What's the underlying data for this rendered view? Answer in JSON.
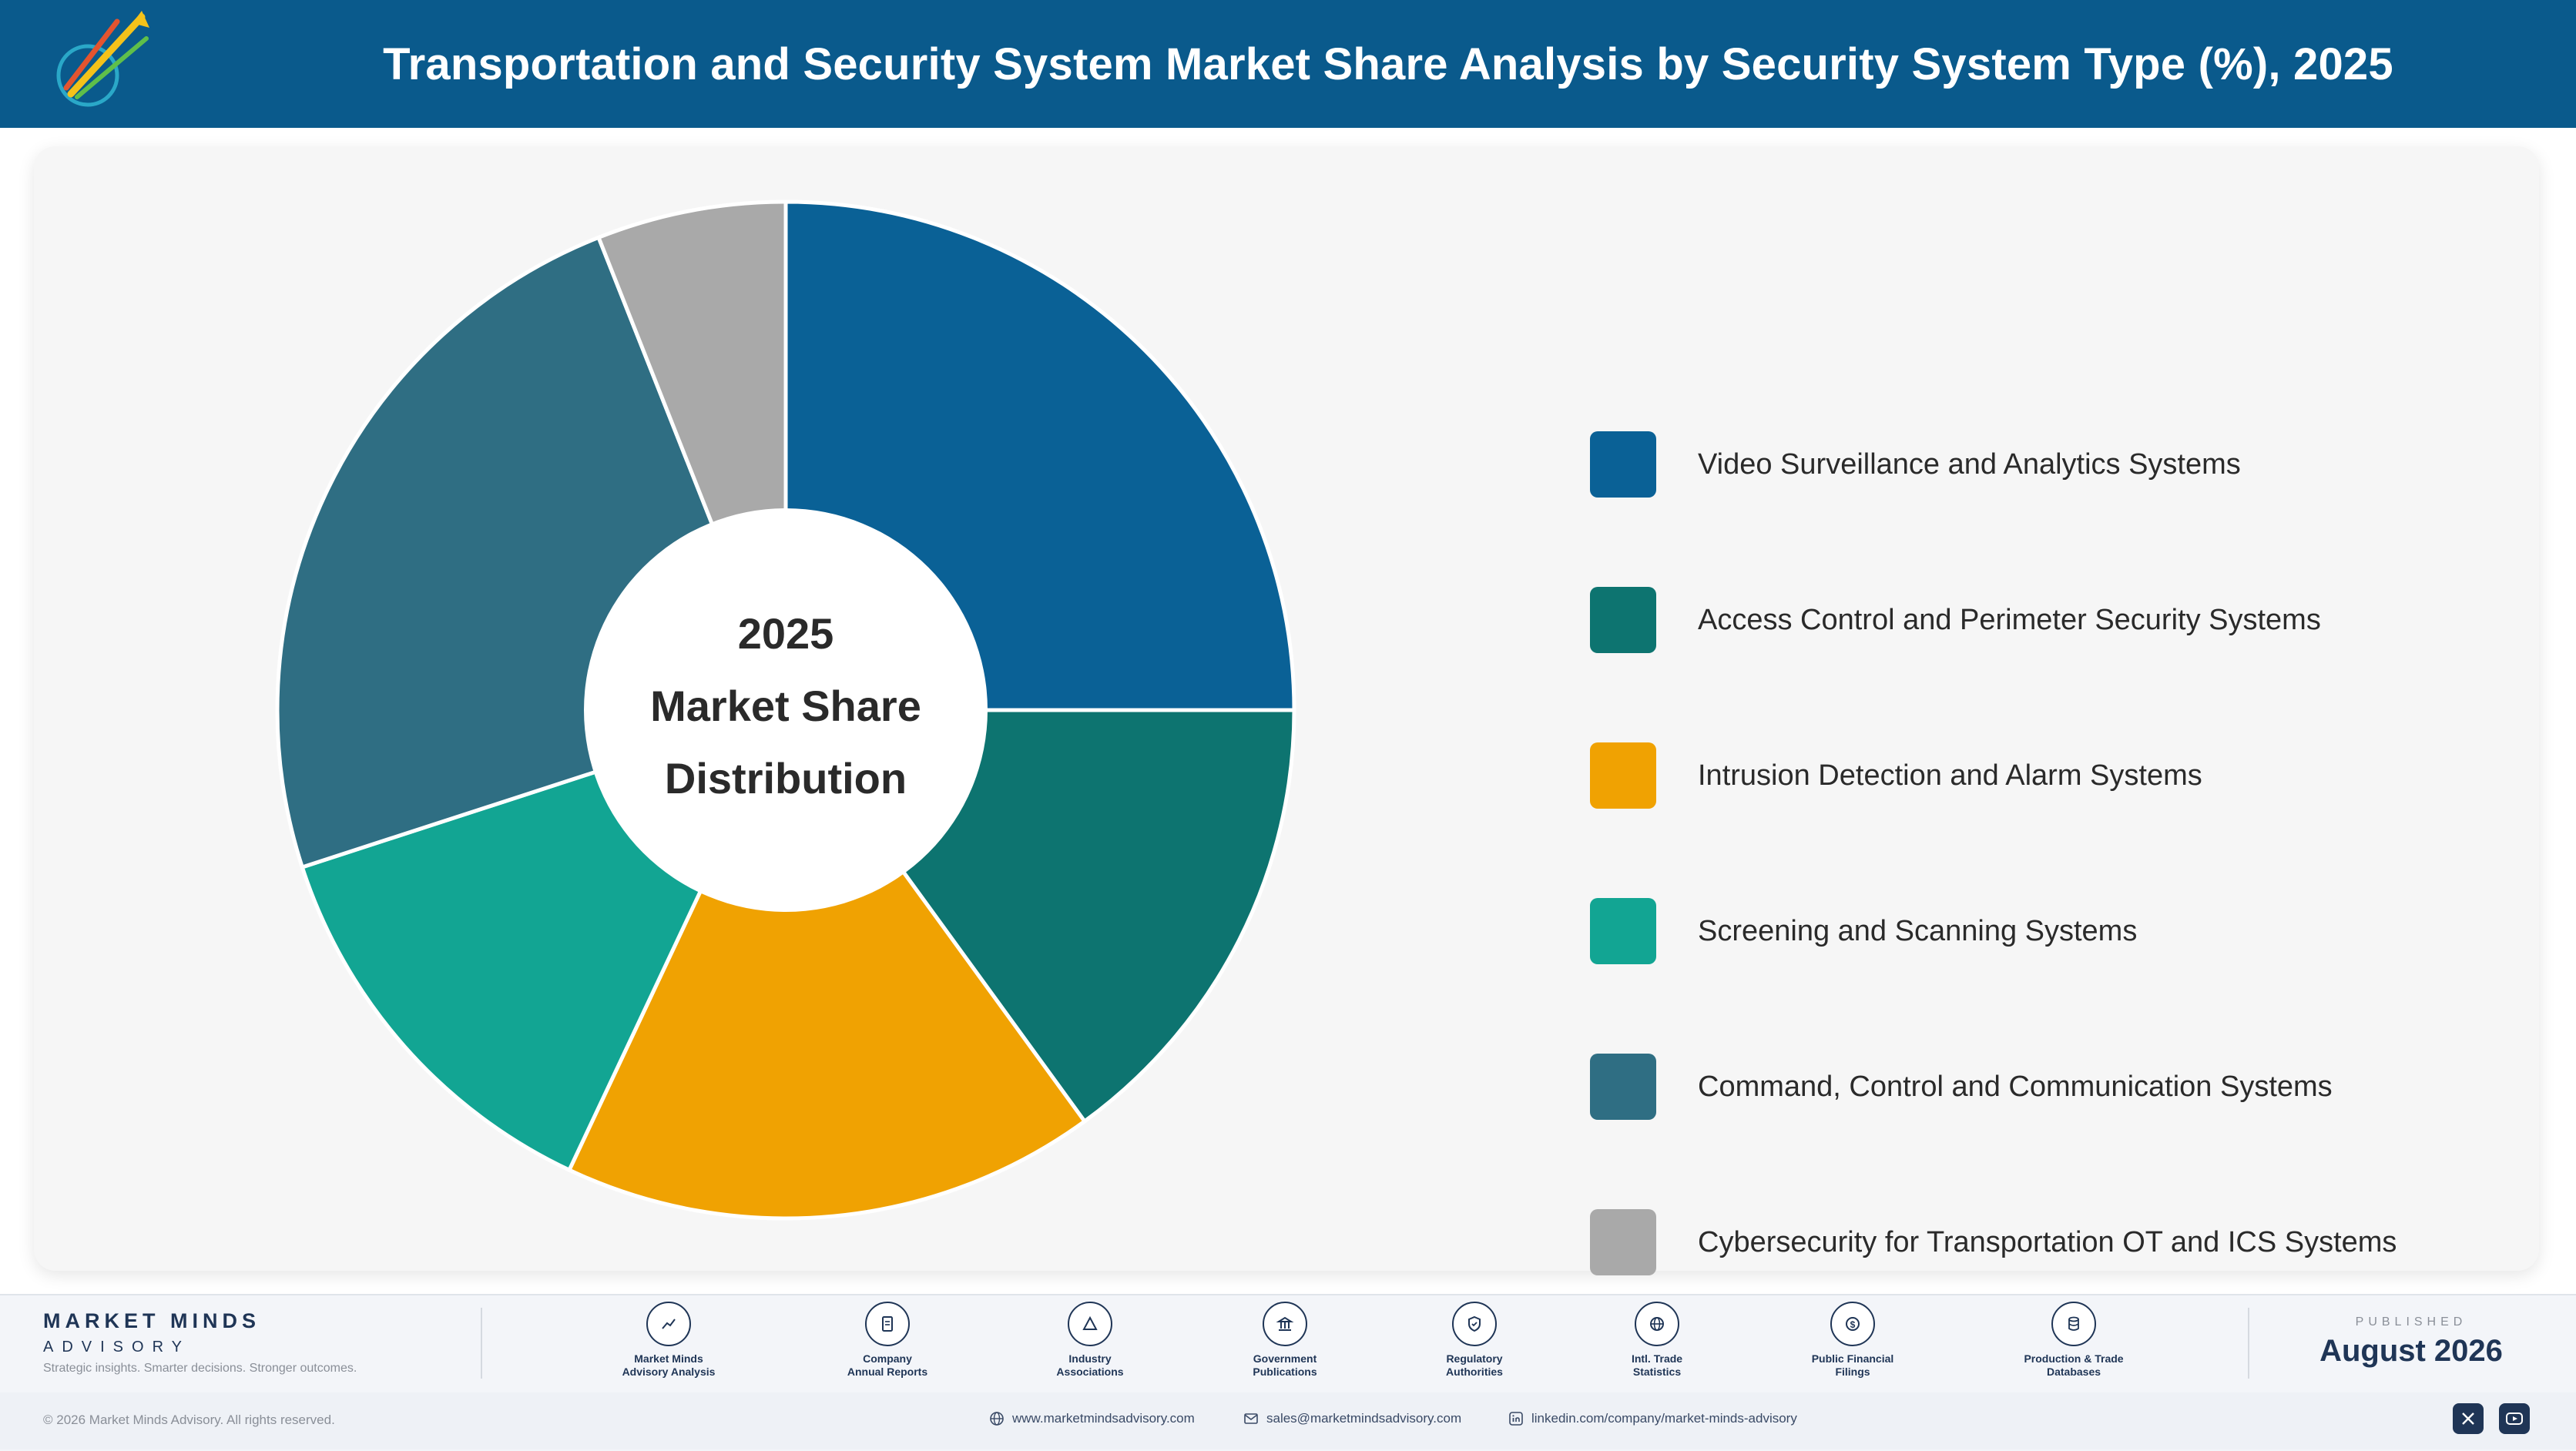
{
  "header": {
    "title": "Transportation and Security System Market Share Analysis by Security System Type (%), 2025",
    "logo_icon": "market-minds-logo"
  },
  "chart_data": {
    "type": "pie",
    "title": "Transportation and Security System Market Share Analysis by Security System Type (%), 2025",
    "center_label": [
      "2025",
      "Market Share",
      "Distribution"
    ],
    "categories": [
      "Video Surveillance and Analytics Systems",
      "Access Control and Perimeter Security Systems",
      "Intrusion Detection and Alarm Systems",
      "Screening and Scanning Systems",
      "Command, Control and Communication Systems",
      "Cybersecurity for Transportation OT and ICS Systems"
    ],
    "values": [
      25,
      15,
      17,
      13,
      24,
      6
    ],
    "colors": [
      "#0a6196",
      "#0d7470",
      "#f0a202",
      "#12a593",
      "#2f6e83",
      "#a9a9a9"
    ],
    "legend_position": "right",
    "donut": true
  },
  "footer": {
    "brand_name": "MARKET MINDS",
    "brand_sub": "ADVISORY",
    "tagline": "Strategic insights. Smarter decisions. Stronger outcomes.",
    "sources": [
      {
        "line1": "Market Minds",
        "line2": "Advisory Analysis",
        "icon": "trend-icon"
      },
      {
        "line1": "Company",
        "line2": "Annual Reports",
        "icon": "document-icon"
      },
      {
        "line1": "Industry",
        "line2": "Associations",
        "icon": "network-icon"
      },
      {
        "line1": "Government",
        "line2": "Publications",
        "icon": "government-icon"
      },
      {
        "line1": "Regulatory",
        "line2": "Authorities",
        "icon": "shield-icon"
      },
      {
        "line1": "Intl. Trade",
        "line2": "Statistics",
        "icon": "globe-icon"
      },
      {
        "line1": "Public Financial",
        "line2": "Filings",
        "icon": "dollar-icon"
      },
      {
        "line1": "Production & Trade",
        "line2": "Databases",
        "icon": "database-icon"
      }
    ],
    "published_label": "PUBLISHED",
    "published_date": "August 2026",
    "copyright": "© 2026 Market Minds Advisory. All rights reserved.",
    "website": "www.marketmindsadvisory.com",
    "email": "sales@marketmindsadvisory.com",
    "linkedin": "linkedin.com/company/market-minds-advisory"
  }
}
